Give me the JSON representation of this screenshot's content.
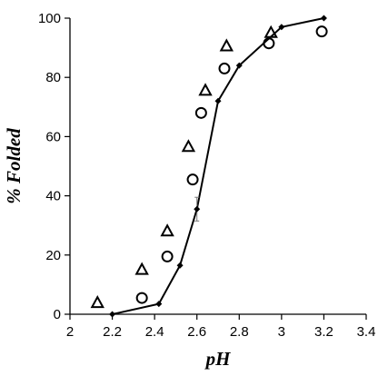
{
  "chart_data": {
    "type": "scatter",
    "xlabel": "pH",
    "ylabel": "% Folded",
    "xlim": [
      2,
      3.4
    ],
    "ylim": [
      0,
      100
    ],
    "xticks": [
      "2",
      "2.2",
      "2.4",
      "2.6",
      "2.8",
      "3",
      "3.2",
      "3.4"
    ],
    "yticks": [
      "0",
      "20",
      "40",
      "60",
      "80",
      "100"
    ],
    "grid": false,
    "series": [
      {
        "marker": "diamond-line",
        "color": "#000000",
        "x": [
          2.2,
          2.42,
          2.52,
          2.6,
          2.7,
          2.8,
          3.0,
          3.2
        ],
        "y": [
          0,
          3.5,
          16.5,
          35.5,
          72,
          84,
          97,
          100
        ],
        "errors": [
          null,
          null,
          null,
          4,
          null,
          null,
          null,
          null
        ]
      },
      {
        "marker": "open-triangle",
        "color": "#000000",
        "x": [
          2.13,
          2.34,
          2.46,
          2.56,
          2.64,
          2.74,
          2.95
        ],
        "y": [
          3.8,
          15,
          28,
          56.5,
          75.5,
          90.5,
          95
        ]
      },
      {
        "marker": "open-circle",
        "color": "#000000",
        "x": [
          2.34,
          2.46,
          2.58,
          2.62,
          2.73,
          2.94,
          3.19
        ],
        "y": [
          5.5,
          19.5,
          45.5,
          68,
          83,
          91.5,
          95.5
        ]
      }
    ]
  }
}
